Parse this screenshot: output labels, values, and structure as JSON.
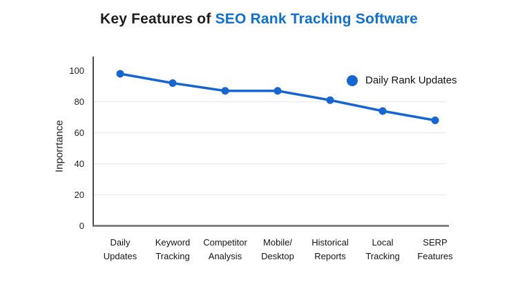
{
  "title": {
    "prefix": "Key Features of ",
    "highlight": "SEO Rank Tracking Software"
  },
  "legend": {
    "label": "Daily Rank Updates"
  },
  "chart_data": {
    "type": "line",
    "title": "Key Features of SEO Rank Tracking Software",
    "categories": [
      [
        "Daily",
        "Updates"
      ],
      [
        "Keyword",
        "Tracking"
      ],
      [
        "Competitor",
        "Analysis"
      ],
      [
        "Mobile/",
        "Desktop"
      ],
      [
        "Historical",
        "Reports"
      ],
      [
        "Local",
        "Tracking"
      ],
      [
        "SERP",
        "Features"
      ]
    ],
    "series": [
      {
        "name": "Daily Rank Updates",
        "values": [
          98,
          92,
          87,
          87,
          81,
          74,
          68
        ]
      }
    ],
    "xlabel": "",
    "ylabel": "Inporrtance",
    "ylim": [
      0,
      100
    ],
    "yticks": [
      0,
      20,
      40,
      60,
      80,
      100
    ],
    "grid": "horizontal-light",
    "legend_position": "top-right-inside"
  },
  "colors": {
    "line": "#1565d2",
    "point": "#1565d2",
    "legend_dot": "#1565d2",
    "title_text": "#1d1d1d",
    "title_highlight": "#0d6fd8",
    "y_axis": "#4a4a4a",
    "x_axis": "#6e6e6e",
    "gridline": "#e9e9e9",
    "tick_text": "#1f1f1f",
    "category_text": "#141414",
    "background": "#ffffff"
  }
}
